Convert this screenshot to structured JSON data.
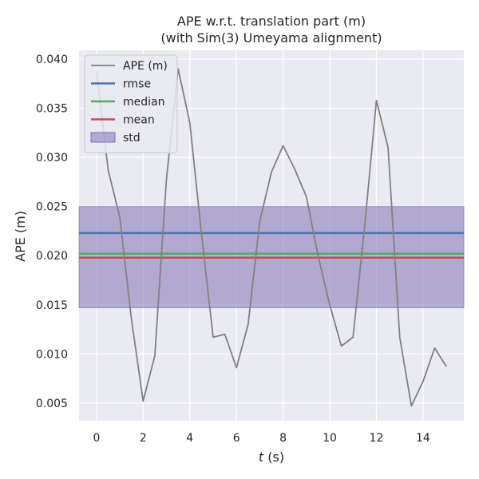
{
  "chart_data": {
    "type": "line",
    "title": "APE w.r.t. translation part (m)",
    "subtitle": "(with Sim(3) Umeyama alignment)",
    "xlabel_italic": "t",
    "xlabel_rest": " (s)",
    "ylabel": "APE (m)",
    "xlim": [
      -0.75,
      15.75
    ],
    "ylim": [
      0.0032,
      0.0409
    ],
    "xticks": [
      0,
      2,
      4,
      6,
      8,
      10,
      12,
      14
    ],
    "yticks": [
      0.005,
      0.01,
      0.015,
      0.02,
      0.025,
      0.03,
      0.035,
      0.04
    ],
    "ytick_labels": [
      "0.005",
      "0.010",
      "0.015",
      "0.020",
      "0.025",
      "0.030",
      "0.035",
      "0.040"
    ],
    "grid": true,
    "background": "#eaeaf2",
    "legend_position": "top-left",
    "series": [
      {
        "name": "APE (m)",
        "color": "#808080",
        "x": [
          0,
          0.5,
          1,
          1.5,
          2,
          2.5,
          3,
          3.5,
          4,
          4.5,
          5,
          5.5,
          6,
          6.5,
          7,
          7.5,
          8,
          8.5,
          9,
          9.5,
          10,
          10.5,
          11,
          11.5,
          12,
          12.5,
          13,
          13.5,
          14,
          14.5,
          15
        ],
        "values": [
          0.0388,
          0.0287,
          0.0239,
          0.0135,
          0.0052,
          0.0098,
          0.0278,
          0.039,
          0.0335,
          0.0222,
          0.0117,
          0.012,
          0.0086,
          0.013,
          0.0235,
          0.0285,
          0.0312,
          0.0288,
          0.026,
          0.02,
          0.015,
          0.0108,
          0.0117,
          0.023,
          0.0358,
          0.031,
          0.0117,
          0.0047,
          0.0072,
          0.0106,
          0.0087
        ]
      }
    ],
    "reference_lines": [
      {
        "name": "rmse",
        "value": 0.0223,
        "color": "#4c72b0"
      },
      {
        "name": "median",
        "value": 0.0202,
        "color": "#55a868"
      },
      {
        "name": "mean",
        "value": 0.0198,
        "color": "#c44e52"
      }
    ],
    "std_band": {
      "name": "std",
      "low": 0.0147,
      "high": 0.025,
      "color": "#8172b2"
    }
  }
}
